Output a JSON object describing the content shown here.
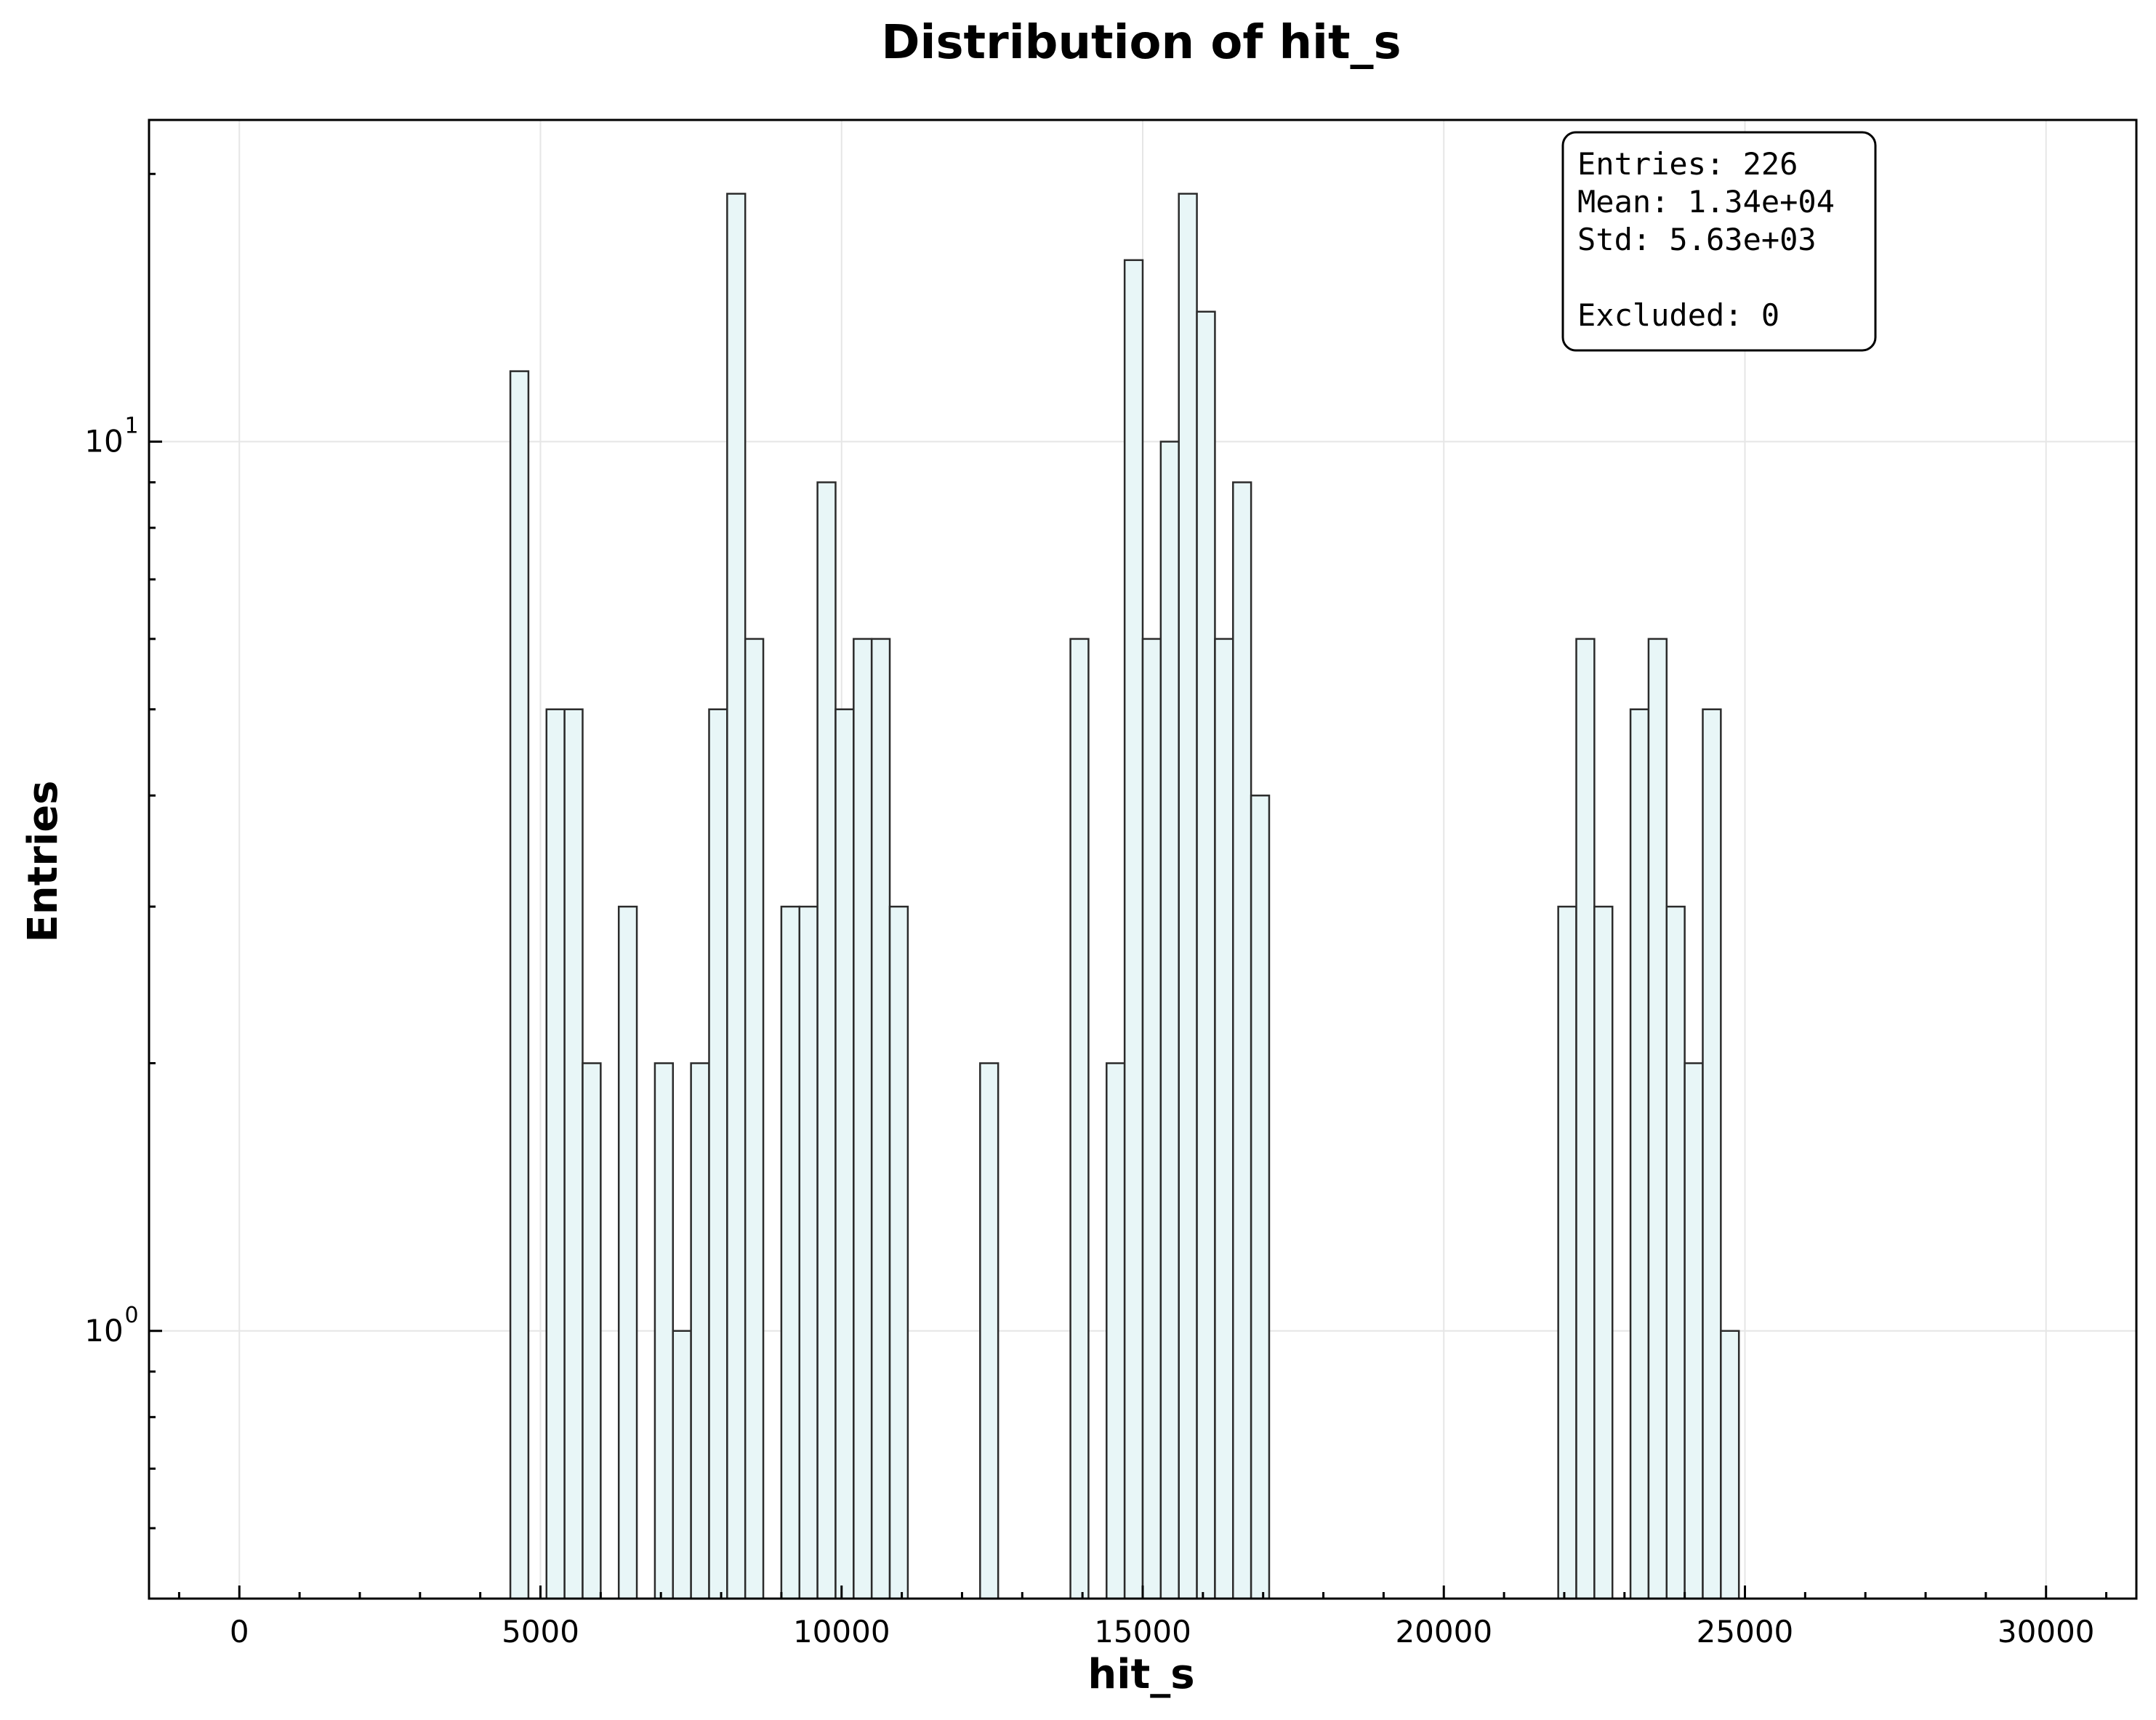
{
  "chart_data": {
    "type": "bar",
    "title": "Distribution of hit_s",
    "xlabel": "hit_s",
    "ylabel": "Entries",
    "xlim": [
      -1500,
      31500
    ],
    "ylim": [
      0.5,
      23
    ],
    "yscale": "log",
    "grid": true,
    "x_ticks": [
      "0",
      "5000",
      "10000",
      "15000",
      "20000",
      "25000",
      "30000"
    ],
    "y_ticks": [
      {
        "base": "10",
        "exp": "0",
        "value": 1
      },
      {
        "base": "10",
        "exp": "1",
        "value": 10
      }
    ],
    "bin_width": 300,
    "bins": [
      {
        "x0": 4500,
        "count": 12
      },
      {
        "x0": 5100,
        "count": 5
      },
      {
        "x0": 5400,
        "count": 5
      },
      {
        "x0": 5700,
        "count": 2
      },
      {
        "x0": 6300,
        "count": 3
      },
      {
        "x0": 6900,
        "count": 2
      },
      {
        "x0": 7200,
        "count": 1
      },
      {
        "x0": 7500,
        "count": 2
      },
      {
        "x0": 7800,
        "count": 5
      },
      {
        "x0": 8100,
        "count": 19
      },
      {
        "x0": 8400,
        "count": 6
      },
      {
        "x0": 9000,
        "count": 3
      },
      {
        "x0": 9300,
        "count": 3
      },
      {
        "x0": 9600,
        "count": 9
      },
      {
        "x0": 9900,
        "count": 5
      },
      {
        "x0": 10200,
        "count": 6
      },
      {
        "x0": 10500,
        "count": 6
      },
      {
        "x0": 10800,
        "count": 3
      },
      {
        "x0": 12300,
        "count": 2
      },
      {
        "x0": 13800,
        "count": 6
      },
      {
        "x0": 14400,
        "count": 2
      },
      {
        "x0": 14700,
        "count": 16
      },
      {
        "x0": 15000,
        "count": 6
      },
      {
        "x0": 15300,
        "count": 10
      },
      {
        "x0": 15600,
        "count": 19
      },
      {
        "x0": 15900,
        "count": 14
      },
      {
        "x0": 16200,
        "count": 6
      },
      {
        "x0": 16500,
        "count": 9
      },
      {
        "x0": 16800,
        "count": 4
      },
      {
        "x0": 21900,
        "count": 3
      },
      {
        "x0": 22200,
        "count": 6
      },
      {
        "x0": 22500,
        "count": 3
      },
      {
        "x0": 23100,
        "count": 5
      },
      {
        "x0": 23400,
        "count": 6
      },
      {
        "x0": 23700,
        "count": 3
      },
      {
        "x0": 24000,
        "count": 2
      },
      {
        "x0": 24300,
        "count": 5
      },
      {
        "x0": 24600,
        "count": 1
      }
    ],
    "stats_box": {
      "entries": "Entries: 226",
      "mean": "Mean: 1.34e+04",
      "std": "Std: 5.63e+03",
      "excluded": "Excluded: 0"
    }
  }
}
